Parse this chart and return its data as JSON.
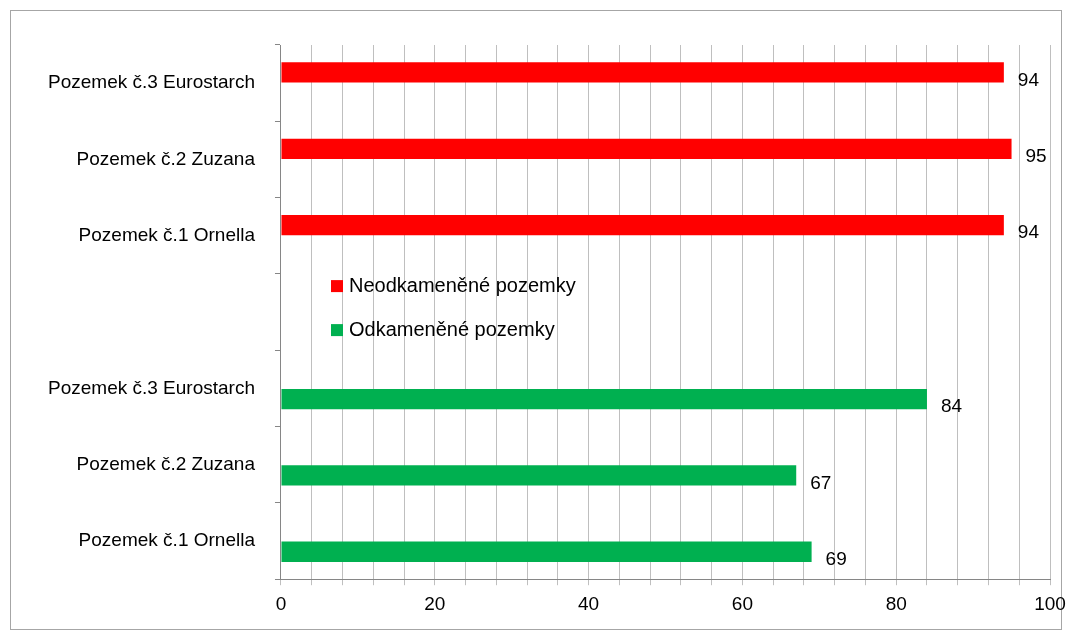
{
  "chart_data": {
    "type": "bar",
    "orientation": "horizontal",
    "categories": [
      "Pozemek č.3 Eurostarch",
      "Pozemek č.2 Zuzana",
      "Pozemek č.1 Ornella",
      null,
      "Pozemek č.3 Eurostarch",
      "Pozemek č.2 Zuzana",
      "Pozemek č.1 Ornella"
    ],
    "series": [
      {
        "name": "Neodkameněné pozemky",
        "color": "#ff0000",
        "values": [
          94,
          95,
          94,
          null,
          null,
          null,
          null
        ]
      },
      {
        "name": "Odkameněné pozemky",
        "color": "#00b050",
        "values": [
          null,
          null,
          null,
          null,
          84,
          67,
          69
        ]
      }
    ],
    "xlim": [
      0,
      100
    ],
    "xticks": [
      0,
      {
        "value": 4,
        "label": null
      },
      {
        "value": 8,
        "label": null
      },
      {
        "value": 12,
        "label": null
      },
      {
        "value": 16,
        "label": null
      },
      20,
      {
        "value": 24,
        "label": null
      },
      {
        "value": 28,
        "label": null
      },
      {
        "value": 32,
        "label": null
      },
      {
        "value": 36,
        "label": null
      },
      40,
      {
        "value": 44,
        "label": null
      },
      {
        "value": 48,
        "label": null
      },
      {
        "value": 52,
        "label": null
      },
      {
        "value": 56,
        "label": null
      },
      60,
      {
        "value": 64,
        "label": null
      },
      {
        "value": 68,
        "label": null
      },
      {
        "value": 72,
        "label": null
      },
      {
        "value": 76,
        "label": null
      },
      80,
      {
        "value": 84,
        "label": null
      },
      {
        "value": 88,
        "label": null
      },
      {
        "value": 92,
        "label": null
      },
      {
        "value": 96,
        "label": null
      },
      100
    ],
    "grid": "x",
    "data_labels": true,
    "legend": "left"
  }
}
